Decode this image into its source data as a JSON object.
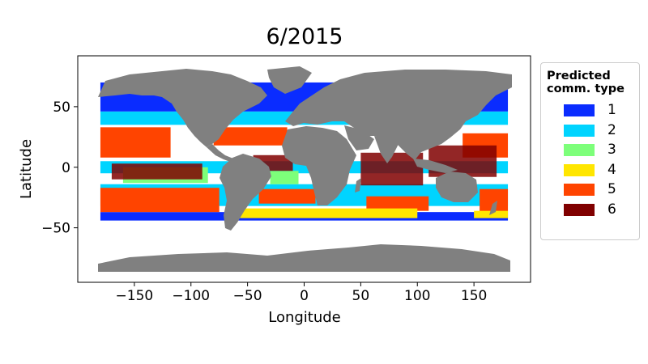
{
  "chart_data": {
    "type": "map",
    "title": "6/2015",
    "xlabel": "Longitude",
    "ylabel": "Latitude",
    "xlim": [
      -200,
      200
    ],
    "ylim": [
      -95,
      92
    ],
    "x_ticks": [
      -150,
      -100,
      -50,
      0,
      50,
      100,
      150
    ],
    "y_ticks": [
      50,
      0,
      -50
    ],
    "x_tick_labels": [
      "−150",
      "−100",
      "−50",
      "0",
      "50",
      "100",
      "150"
    ],
    "y_tick_labels": [
      "50",
      "0",
      "−50"
    ],
    "land_color": "#808080",
    "legend": {
      "title": "Predicted\ncomm. type",
      "placement": "right-outside",
      "entries": [
        {
          "label": "1",
          "color": "#0a2cff"
        },
        {
          "label": "2",
          "color": "#00d4ff"
        },
        {
          "label": "3",
          "color": "#7dff7a"
        },
        {
          "label": "4",
          "color": "#ffe600"
        },
        {
          "label": "5",
          "color": "#ff4400"
        },
        {
          "label": "6",
          "color": "#800000"
        }
      ]
    },
    "zones": [
      {
        "type": "1",
        "lon": [
          -180,
          180
        ],
        "lat": [
          46,
          70
        ]
      },
      {
        "type": "1",
        "lon": [
          -180,
          180
        ],
        "lat": [
          -44,
          -37
        ]
      },
      {
        "type": "2",
        "lon": [
          -180,
          180
        ],
        "lat": [
          35,
          46
        ]
      },
      {
        "type": "2",
        "lon": [
          -180,
          180
        ],
        "lat": [
          -32,
          -14
        ]
      },
      {
        "type": "2",
        "lon": [
          -180,
          180
        ],
        "lat": [
          -5,
          5
        ]
      },
      {
        "type": "5",
        "lon": [
          -180,
          -118
        ],
        "lat": [
          8,
          33
        ]
      },
      {
        "type": "5",
        "lon": [
          -80,
          -15
        ],
        "lat": [
          18,
          33
        ]
      },
      {
        "type": "5",
        "lon": [
          140,
          180
        ],
        "lat": [
          8,
          28
        ]
      },
      {
        "type": "5",
        "lon": [
          -180,
          -75
        ],
        "lat": [
          -37,
          -17
        ]
      },
      {
        "type": "5",
        "lon": [
          -40,
          10
        ],
        "lat": [
          -30,
          -18
        ]
      },
      {
        "type": "5",
        "lon": [
          55,
          110
        ],
        "lat": [
          -36,
          -24
        ]
      },
      {
        "type": "5",
        "lon": [
          155,
          180
        ],
        "lat": [
          -37,
          -18
        ]
      },
      {
        "type": "3",
        "lon": [
          -160,
          -85
        ],
        "lat": [
          -13,
          0
        ]
      },
      {
        "type": "3",
        "lon": [
          -30,
          -5
        ],
        "lat": [
          -14,
          -3
        ]
      },
      {
        "type": "4",
        "lon": [
          -60,
          100
        ],
        "lat": [
          -42,
          -34
        ]
      },
      {
        "type": "4",
        "lon": [
          150,
          180
        ],
        "lat": [
          -42,
          -36
        ]
      },
      {
        "type": "6",
        "lon": [
          -170,
          -90
        ],
        "lat": [
          -10,
          3
        ]
      },
      {
        "type": "6",
        "lon": [
          -45,
          -10
        ],
        "lat": [
          -3,
          10
        ]
      },
      {
        "type": "6",
        "lon": [
          50,
          105
        ],
        "lat": [
          -15,
          12
        ]
      },
      {
        "type": "6",
        "lon": [
          110,
          170
        ],
        "lat": [
          -8,
          18
        ]
      }
    ]
  }
}
